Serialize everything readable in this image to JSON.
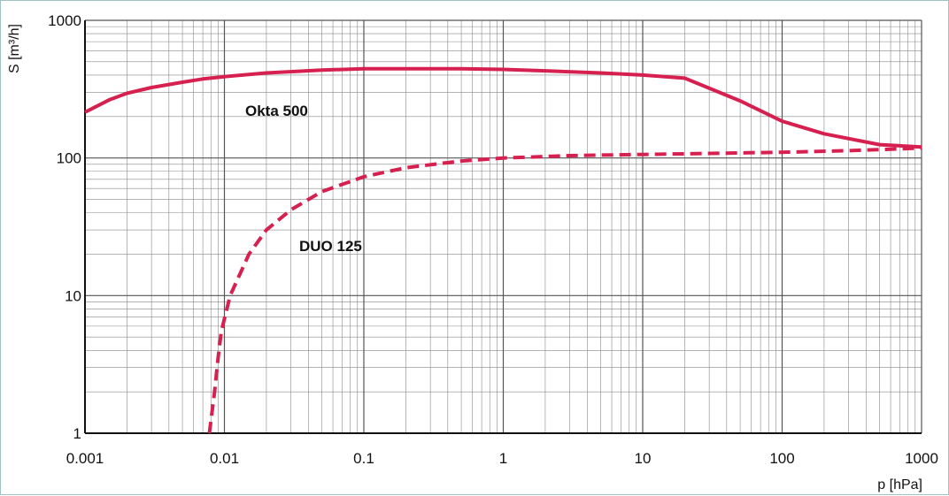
{
  "chart_data": {
    "type": "line",
    "title": "",
    "xlabel": "p [hPa]",
    "ylabel": "S [m³/h]",
    "xscale": "log",
    "yscale": "log",
    "xlim": [
      0.001,
      1000
    ],
    "ylim": [
      1,
      1000
    ],
    "grid": true,
    "x_tick_labels": [
      "0.001",
      "0.01",
      "0.1",
      "1",
      "10",
      "100",
      "1000"
    ],
    "y_tick_labels": [
      "1",
      "10",
      "100",
      "1000"
    ],
    "series_color": "#d6204f",
    "series": [
      {
        "name": "Okta 500",
        "style": "solid",
        "points": [
          [
            0.001,
            215
          ],
          [
            0.0015,
            265
          ],
          [
            0.002,
            295
          ],
          [
            0.003,
            325
          ],
          [
            0.005,
            355
          ],
          [
            0.007,
            375
          ],
          [
            0.01,
            390
          ],
          [
            0.02,
            415
          ],
          [
            0.05,
            435
          ],
          [
            0.1,
            445
          ],
          [
            0.2,
            445
          ],
          [
            0.5,
            445
          ],
          [
            1,
            440
          ],
          [
            2,
            430
          ],
          [
            5,
            415
          ],
          [
            10,
            400
          ],
          [
            20,
            380
          ],
          [
            50,
            260
          ],
          [
            100,
            185
          ],
          [
            200,
            150
          ],
          [
            500,
            125
          ],
          [
            1000,
            120
          ]
        ]
      },
      {
        "name": "DUO 125",
        "style": "dashed",
        "points": [
          [
            0.0078,
            1
          ],
          [
            0.0085,
            2
          ],
          [
            0.009,
            3.5
          ],
          [
            0.0095,
            5.5
          ],
          [
            0.011,
            10
          ],
          [
            0.015,
            20
          ],
          [
            0.02,
            30
          ],
          [
            0.03,
            42
          ],
          [
            0.05,
            57
          ],
          [
            0.1,
            73
          ],
          [
            0.2,
            85
          ],
          [
            0.5,
            95
          ],
          [
            1,
            100
          ],
          [
            3,
            104
          ],
          [
            10,
            106
          ],
          [
            30,
            108
          ],
          [
            100,
            110
          ],
          [
            300,
            113
          ],
          [
            1000,
            118
          ]
        ]
      }
    ]
  }
}
